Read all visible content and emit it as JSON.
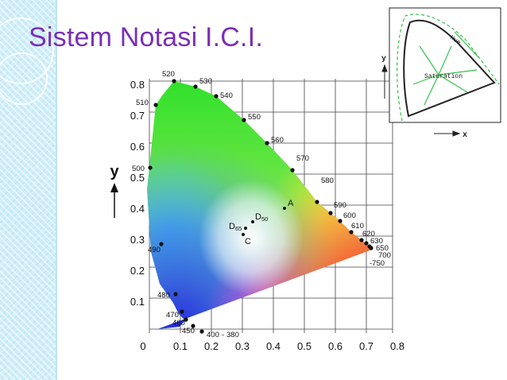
{
  "slide": {
    "title": "Sistem Notasi I.C.I.",
    "colors": {
      "title": "#7a2fb4",
      "strip": "#cfeef8"
    }
  },
  "diagram": {
    "y_axis_letter": "y",
    "x_ticks": [
      "0",
      "0.1",
      "0.2",
      "0.3",
      "0.4",
      "0.5",
      "0.6",
      "0.7",
      "0.8"
    ],
    "y_ticks": [
      "0.1",
      "0.2",
      "0.3",
      "0.4",
      "0.5",
      "0.6",
      "0.7",
      "0.8"
    ],
    "wavelength_labels": [
      "520",
      "530",
      "540",
      "550",
      "560",
      "570",
      "580",
      "590",
      "600",
      "610",
      "620",
      "630",
      "650",
      "700",
      "-750",
      "510",
      "500",
      "490",
      "480",
      "470",
      "460",
      "450",
      "400",
      "-",
      "380"
    ],
    "point_labels": {
      "a": "A",
      "d50_main": "D",
      "d50_sub": "50",
      "d65_main": "D",
      "d65_sub": "65",
      "c": "C"
    }
  },
  "inset": {
    "hue_label": "Hue",
    "saturation_label": "Saturation",
    "y_label": "y",
    "x_label": "x"
  }
}
